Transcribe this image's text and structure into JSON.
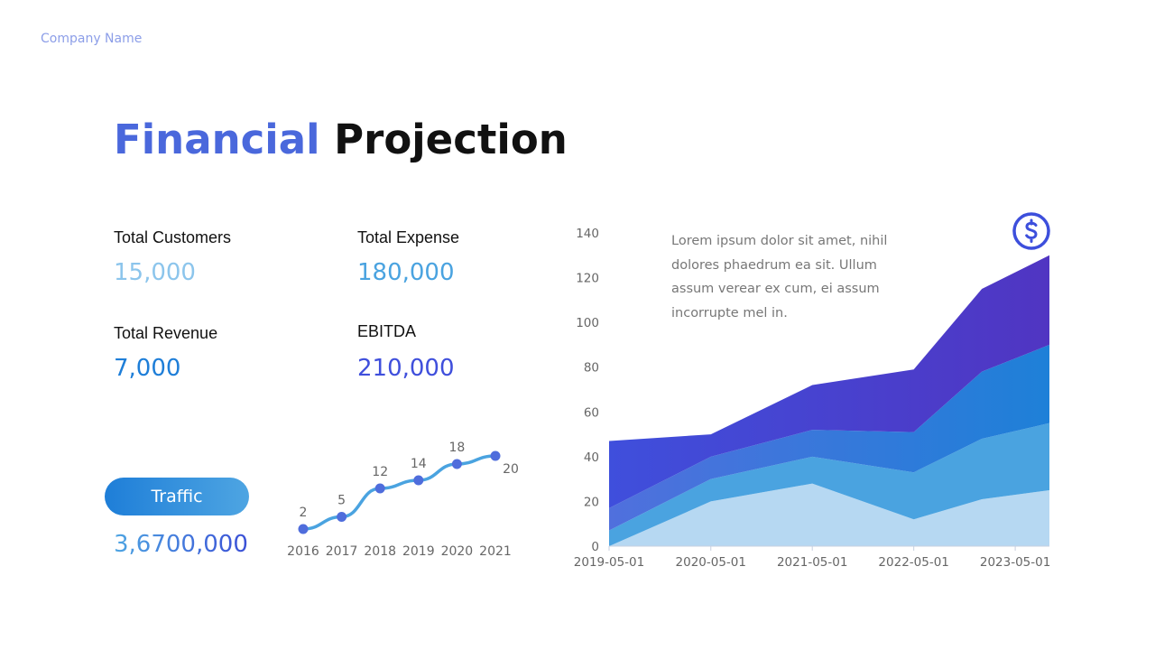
{
  "header": {
    "company": "Company Name",
    "title_part1": "Financial",
    "title_part2": "Projection"
  },
  "kpis": [
    {
      "label": "Total Customers",
      "value": "15,000",
      "color": "#8cc5ec"
    },
    {
      "label": "Total Expense",
      "value": "180,000",
      "color": "#4aa3e0"
    },
    {
      "label": "Total Revenue",
      "value": "7,000",
      "color": "#1e7ed8"
    },
    {
      "label": "EBITDA",
      "value": "210,000",
      "color": "#3f4fdc"
    }
  ],
  "traffic": {
    "button_label": "Traffic",
    "value": "3,6700,000"
  },
  "description": "Lorem ipsum dolor sit amet, nihil dolores phaedrum ea sit. Ullum assum verear ex cum, ei assum incorrupte mel in.",
  "icons": {
    "dollar": "dollar-circle-icon"
  },
  "chart_data": [
    {
      "type": "line",
      "categories": [
        "2016",
        "2017",
        "2018",
        "2019",
        "2020",
        "2021"
      ],
      "values": [
        2,
        5,
        12,
        14,
        18,
        20
      ],
      "data_labels": [
        "2",
        "5",
        "12",
        "14",
        "18",
        "20"
      ],
      "line_color": "#4aa3e0",
      "marker_color": "#4f6ddc",
      "grid": false
    },
    {
      "type": "area",
      "stacked": true,
      "x": [
        "2019-05-01",
        "2020-05-01",
        "2021-05-01",
        "2022-05-01",
        "2023-01-01",
        "2023-09-01"
      ],
      "x_ticks": [
        "2019-05-01",
        "2020-05-01",
        "2021-05-01",
        "2022-05-01",
        "2023-05-01"
      ],
      "y_ticks": [
        "0",
        "20",
        "40",
        "60",
        "80",
        "100",
        "120",
        "140"
      ],
      "ylim": [
        0,
        140
      ],
      "grid": false,
      "series": [
        {
          "values": [
            0,
            20,
            28,
            12,
            21,
            25
          ],
          "color": "#b6d8f2"
        },
        {
          "values": [
            7,
            10,
            12,
            21,
            27,
            30
          ],
          "color": "#4aa3e0"
        },
        {
          "values": [
            10,
            10,
            12,
            18,
            30,
            35
          ],
          "color_start": "#5070dd",
          "color_end": "#1e80d8"
        },
        {
          "values": [
            30,
            10,
            20,
            28,
            37,
            40
          ],
          "color_start": "#3f4fdc",
          "color_end": "#5035c2"
        }
      ]
    }
  ]
}
